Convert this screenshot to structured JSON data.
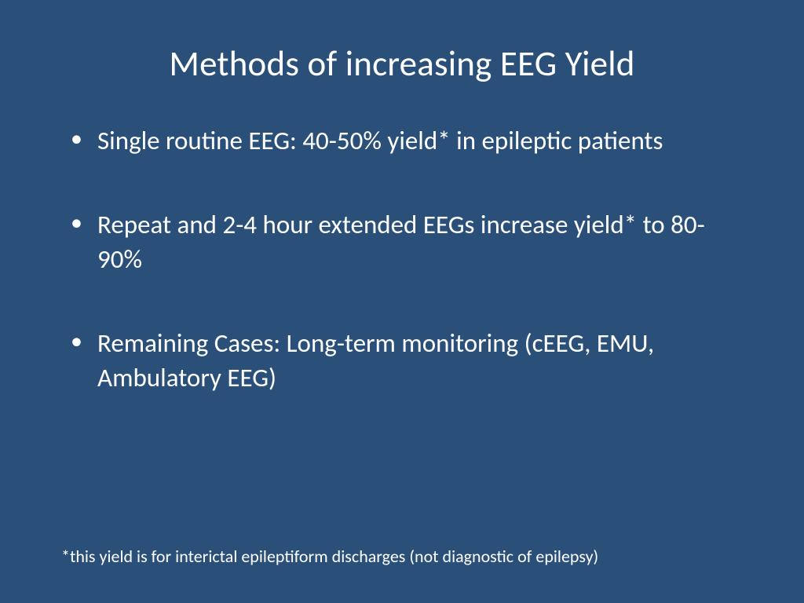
{
  "slide": {
    "background_color": "#2a5079",
    "text_color": "#ffffff",
    "font_family": "Calibri",
    "title": "Methods of increasing EEG Yield",
    "title_fontsize": 45,
    "bullet_fontsize": 33,
    "footnote_fontsize": 22,
    "bullets": [
      "Single routine EEG:  40-50% yield* in epileptic patients",
      "Repeat and 2-4 hour extended EEGs increase yield* to 80-90%",
      "Remaining Cases:  Long-term monitoring (cEEG, EMU, Ambulatory EEG)"
    ],
    "footnote": "*this yield is for interictal epileptiform discharges (not diagnostic of epilepsy)"
  }
}
